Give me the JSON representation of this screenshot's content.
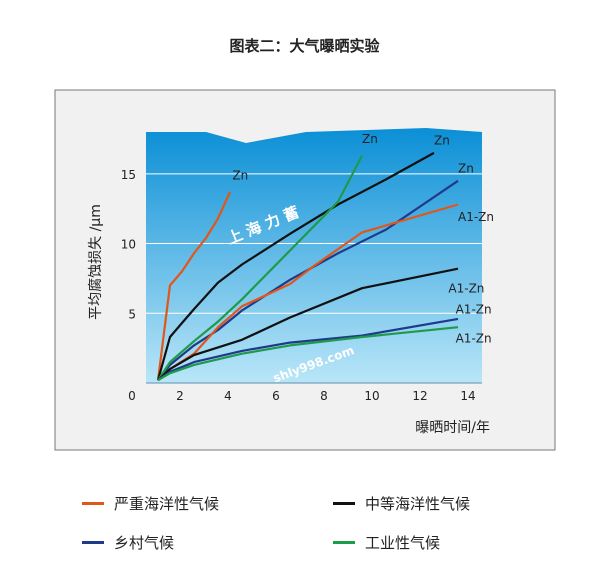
{
  "title": "图表二：大气曝晒实验",
  "chart_data": {
    "type": "line",
    "xlabel": "曝晒时间/年",
    "ylabel": "平均腐蚀损失 /μm",
    "xlim": [
      0,
      14
    ],
    "ylim": [
      0,
      18
    ],
    "x_ticks": [
      "0",
      "2",
      "4",
      "6",
      "8",
      "10",
      "12",
      "14"
    ],
    "y_ticks": [
      "5",
      "10",
      "15"
    ],
    "grid": true,
    "legend_position": "bottom",
    "series": [
      {
        "name": "严重海洋性气候",
        "metal": "Zn",
        "color": "#e0571c",
        "x": [
          0.5,
          1,
          1.5,
          2,
          2.5,
          3,
          3.5
        ],
        "y": [
          0.2,
          7,
          8,
          9.3,
          10.4,
          11.8,
          13.7
        ]
      },
      {
        "name": "中等海洋性气候",
        "metal": "Zn",
        "color": "#111111",
        "x": [
          0.5,
          1,
          1.5,
          2,
          3,
          4,
          6,
          8,
          10,
          12
        ],
        "y": [
          0.2,
          3.3,
          4.3,
          5.3,
          7.2,
          8.5,
          10.7,
          12.8,
          14.6,
          16.5
        ]
      },
      {
        "name": "乡村气候",
        "metal": "Zn",
        "color": "#1f3a8a",
        "x": [
          0.5,
          1,
          2,
          3,
          4,
          6,
          8,
          10,
          13
        ],
        "y": [
          0.2,
          1.3,
          2.7,
          3.8,
          5.2,
          7.4,
          9.3,
          11,
          14.5
        ]
      },
      {
        "name": "工业性气候",
        "metal": "Zn",
        "color": "#1f9a4a",
        "x": [
          0.5,
          1,
          2,
          3,
          4,
          6,
          8,
          9
        ],
        "y": [
          0.2,
          1.5,
          3,
          4.4,
          6,
          9.5,
          13,
          16.3
        ]
      },
      {
        "name": "严重海洋性气候",
        "metal": "A1-Zn",
        "color": "#e0571c",
        "x": [
          0.5,
          1,
          2,
          3,
          4,
          6,
          7,
          8,
          9,
          13
        ],
        "y": [
          0.2,
          1,
          2.1,
          4,
          5.5,
          7.1,
          8.4,
          9.6,
          10.8,
          12.8
        ]
      },
      {
        "name": "中等海洋性气候",
        "metal": "A1-Zn",
        "color": "#111111",
        "x": [
          0.5,
          1,
          2,
          4,
          6,
          9,
          13
        ],
        "y": [
          0.2,
          1,
          2,
          3.1,
          4.7,
          6.8,
          8.2
        ]
      },
      {
        "name": "乡村气候",
        "metal": "A1-Zn",
        "color": "#1f3a8a",
        "x": [
          0.5,
          1,
          2,
          4,
          6,
          9,
          13
        ],
        "y": [
          0.2,
          0.8,
          1.5,
          2.3,
          2.9,
          3.4,
          4.6
        ]
      },
      {
        "name": "工业性气候",
        "metal": "A1-Zn",
        "color": "#1f9a4a",
        "x": [
          0.5,
          1,
          2,
          4,
          6,
          9,
          13
        ],
        "y": [
          0.2,
          0.7,
          1.3,
          2.1,
          2.7,
          3.3,
          4
        ]
      }
    ],
    "annotations": [
      {
        "text": "Zn",
        "x": 3.6,
        "y": 14.6
      },
      {
        "text": "Zn",
        "x": 9.0,
        "y": 17.2
      },
      {
        "text": "Zn",
        "x": 12.0,
        "y": 17.1
      },
      {
        "text": "Zn",
        "x": 13.0,
        "y": 15.1
      },
      {
        "text": "A1-Zn",
        "x": 13.0,
        "y": 11.6
      },
      {
        "text": "A1-Zn",
        "x": 12.6,
        "y": 6.5
      },
      {
        "text": "A1-Zn",
        "x": 12.9,
        "y": 5.0
      },
      {
        "text": "A1-Zn",
        "x": 12.9,
        "y": 2.9
      }
    ]
  },
  "watermarks": [
    "上 海 力 蓄",
    "shly998.com"
  ],
  "legend": [
    {
      "label": "严重海洋性气候",
      "color": "#e0571c"
    },
    {
      "label": "中等海洋性气候",
      "color": "#111111"
    },
    {
      "label": "乡村气候",
      "color": "#1f3a8a"
    },
    {
      "label": "工业性气候",
      "color": "#1f9a4a"
    }
  ]
}
